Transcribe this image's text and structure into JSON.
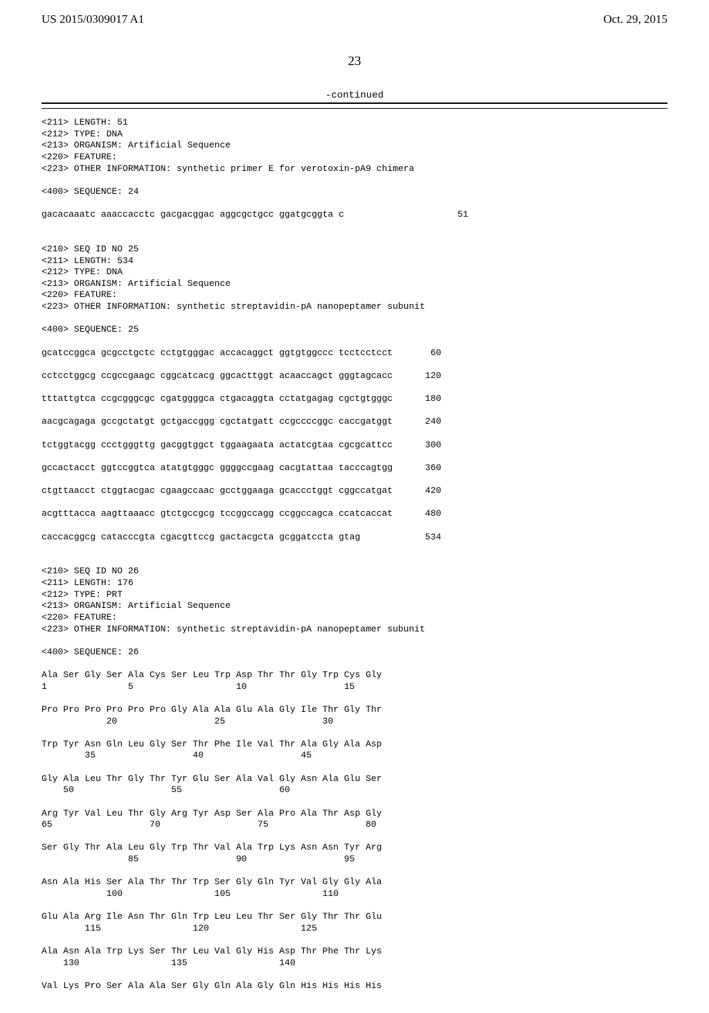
{
  "header": {
    "pub_number": "US 2015/0309017 A1",
    "pub_date": "Oct. 29, 2015"
  },
  "page_number": "23",
  "continued_label": "-continued",
  "block1": "<211> LENGTH: 51\n<212> TYPE: DNA\n<213> ORGANISM: Artificial Sequence\n<220> FEATURE:\n<223> OTHER INFORMATION: synthetic primer E for verotoxin-pA9 chimera\n\n<400> SEQUENCE: 24\n\ngacacaaatc aaaccacctc gacgacggac aggcgctgcc ggatgcggta c                     51\n\n\n<210> SEQ ID NO 25\n<211> LENGTH: 534\n<212> TYPE: DNA\n<213> ORGANISM: Artificial Sequence\n<220> FEATURE:\n<223> OTHER INFORMATION: synthetic streptavidin-pA nanopeptamer subunit\n\n<400> SEQUENCE: 25\n\ngcatccggca gcgcctgctc cctgtgggac accacaggct ggtgtggccc tcctcctcct       60\n\ncctcctggcg ccgccgaagc cggcatcacg ggcacttggt acaaccagct gggtagcacc      120\n\ntttattgtca ccgcgggcgc cgatggggca ctgacaggta cctatgagag cgctgtgggc      180\n\naacgcagaga gccgctatgt gctgaccggg cgctatgatt ccgccccggc caccgatggt      240\n\ntctggtacgg ccctgggttg gacggtggct tggaagaata actatcgtaa cgcgcattcc      300\n\ngccactacct ggtccggtca atatgtgggc ggggccgaag cacgtattaa tacccagtgg      360\n\nctgttaacct ctggtacgac cgaagccaac gcctggaaga gcaccctggt cggccatgat      420\n\nacgtttacca aagttaaacc gtctgccgcg tccggccagg ccggccagca ccatcaccat      480\n\ncaccacggcg catacccgta cgacgttccg gactacgcta gcggatccta gtag            534\n\n\n<210> SEQ ID NO 26\n<211> LENGTH: 176\n<212> TYPE: PRT\n<213> ORGANISM: Artificial Sequence\n<220> FEATURE:\n<223> OTHER INFORMATION: synthetic streptavidin-pA nanopeptamer subunit\n\n<400> SEQUENCE: 26\n\nAla Ser Gly Ser Ala Cys Ser Leu Trp Asp Thr Thr Gly Trp Cys Gly\n1               5                   10                  15\n\nPro Pro Pro Pro Pro Pro Gly Ala Ala Glu Ala Gly Ile Thr Gly Thr\n            20                  25                  30\n\nTrp Tyr Asn Gln Leu Gly Ser Thr Phe Ile Val Thr Ala Gly Ala Asp\n        35                  40                  45\n\nGly Ala Leu Thr Gly Thr Tyr Glu Ser Ala Val Gly Asn Ala Glu Ser\n    50                  55                  60\n\nArg Tyr Val Leu Thr Gly Arg Tyr Asp Ser Ala Pro Ala Thr Asp Gly\n65                  70                  75                  80\n\nSer Gly Thr Ala Leu Gly Trp Thr Val Ala Trp Lys Asn Asn Tyr Arg\n                85                  90                  95\n\nAsn Ala His Ser Ala Thr Thr Trp Ser Gly Gln Tyr Val Gly Gly Ala\n            100                 105                 110\n\nGlu Ala Arg Ile Asn Thr Gln Trp Leu Leu Thr Ser Gly Thr Thr Glu\n        115                 120                 125\n\nAla Asn Ala Trp Lys Ser Thr Leu Val Gly His Asp Thr Phe Thr Lys\n    130                 135                 140\n\nVal Lys Pro Ser Ala Ala Ser Gly Gln Ala Gly Gln His His His His"
}
